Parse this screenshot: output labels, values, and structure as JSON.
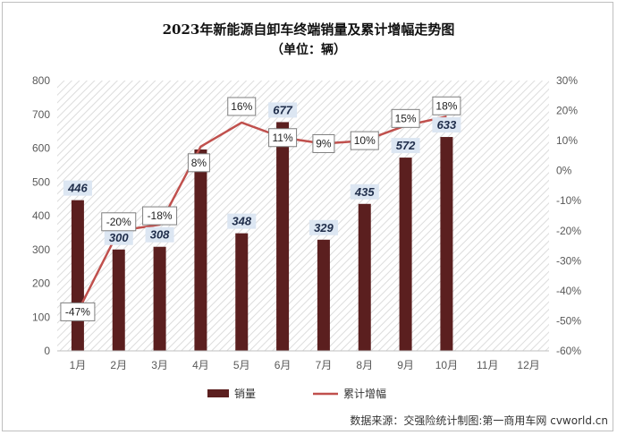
{
  "chart_data": {
    "type": "bar",
    "title": "2023年新能源自卸车终端销量及累计增幅走势图",
    "subtitle": "（单位：辆）",
    "categories": [
      "1月",
      "2月",
      "3月",
      "4月",
      "5月",
      "6月",
      "7月",
      "8月",
      "9月",
      "10月",
      "11月",
      "12月"
    ],
    "series": [
      {
        "name": "销量",
        "type": "bar",
        "axis": "left",
        "color": "#5b1f1f",
        "values": [
          446,
          300,
          308,
          596,
          348,
          677,
          329,
          435,
          572,
          633,
          null,
          null
        ]
      },
      {
        "name": "累计增幅",
        "type": "line",
        "axis": "right",
        "color": "#c0504d",
        "values": [
          -47,
          -20,
          -18,
          8,
          16,
          11,
          9,
          10,
          15,
          18,
          null,
          null
        ],
        "labels": [
          "-47%",
          "-20%",
          "-18%",
          "8%",
          "16%",
          "11%",
          "9%",
          "10%",
          "15%",
          "18%",
          null,
          null
        ]
      }
    ],
    "bar_labels": [
      "446",
      "300",
      "308",
      "",
      "348",
      "677",
      "329",
      "435",
      "572",
      "633",
      null,
      null
    ],
    "y_left": {
      "lim": [
        0,
        800
      ],
      "ticks": [
        "0",
        "100",
        "200",
        "300",
        "400",
        "500",
        "600",
        "700",
        "800"
      ]
    },
    "y_right": {
      "lim": [
        -60,
        30
      ],
      "ticks": [
        "-60%",
        "-50%",
        "-40%",
        "-30%",
        "-20%",
        "-10%",
        "0%",
        "10%",
        "20%",
        "30%"
      ]
    },
    "grid": false,
    "legend_position": "bottom",
    "source_note": "数据来源：交强险统计制图:第一商用车网 cvworld.cn"
  }
}
